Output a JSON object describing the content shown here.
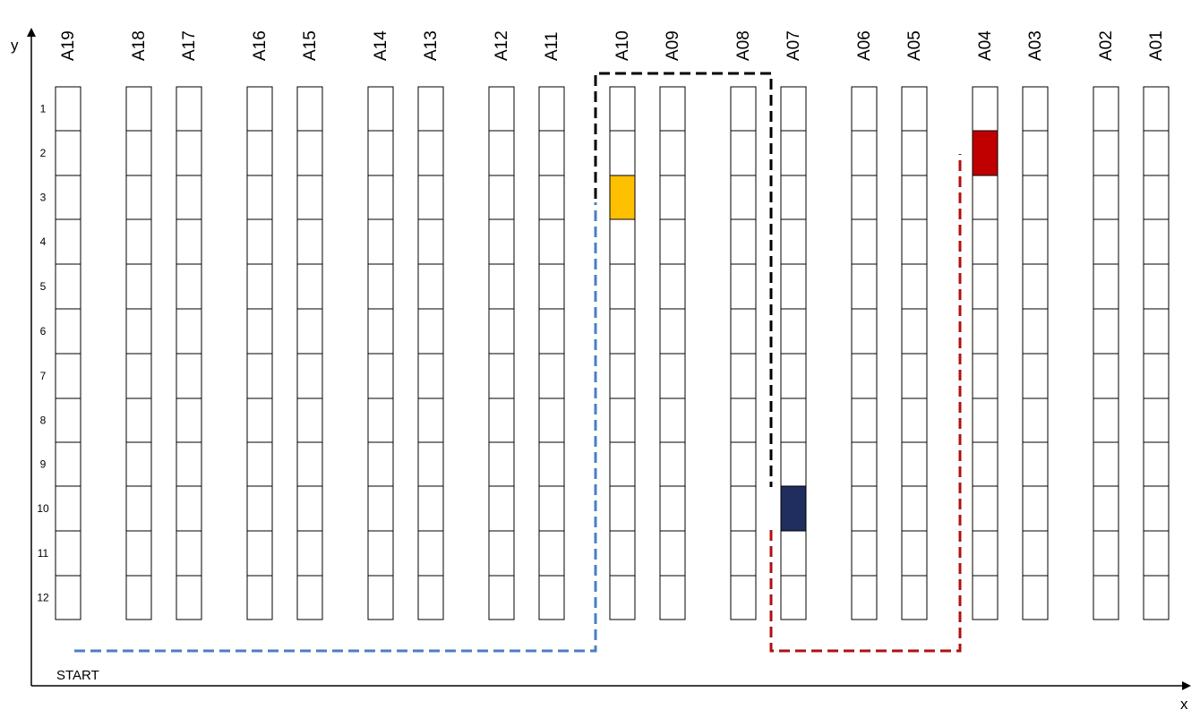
{
  "axes": {
    "x_label": "x",
    "y_label": "y"
  },
  "start_label": "START",
  "aisles": [
    "A19",
    "A18",
    "A17",
    "A16",
    "A15",
    "A14",
    "A13",
    "A12",
    "A11",
    "A10",
    "A09",
    "A08",
    "A07",
    "A06",
    "A05",
    "A04",
    "A03",
    "A02",
    "A01"
  ],
  "rows": [
    "1",
    "2",
    "3",
    "4",
    "5",
    "6",
    "7",
    "8",
    "9",
    "10",
    "11",
    "12"
  ],
  "highlighted_cells": [
    {
      "aisle": "A10",
      "row": 3,
      "color": "#FFC000"
    },
    {
      "aisle": "A04",
      "row": 2,
      "color": "#C00000"
    },
    {
      "aisle": "A07",
      "row": 10,
      "color": "#1F2D5F"
    }
  ],
  "paths": [
    {
      "name": "blue-path",
      "color": "#4A7EC4"
    },
    {
      "name": "black-path",
      "color": "#000000"
    },
    {
      "name": "red-path",
      "color": "#B01010"
    }
  ]
}
